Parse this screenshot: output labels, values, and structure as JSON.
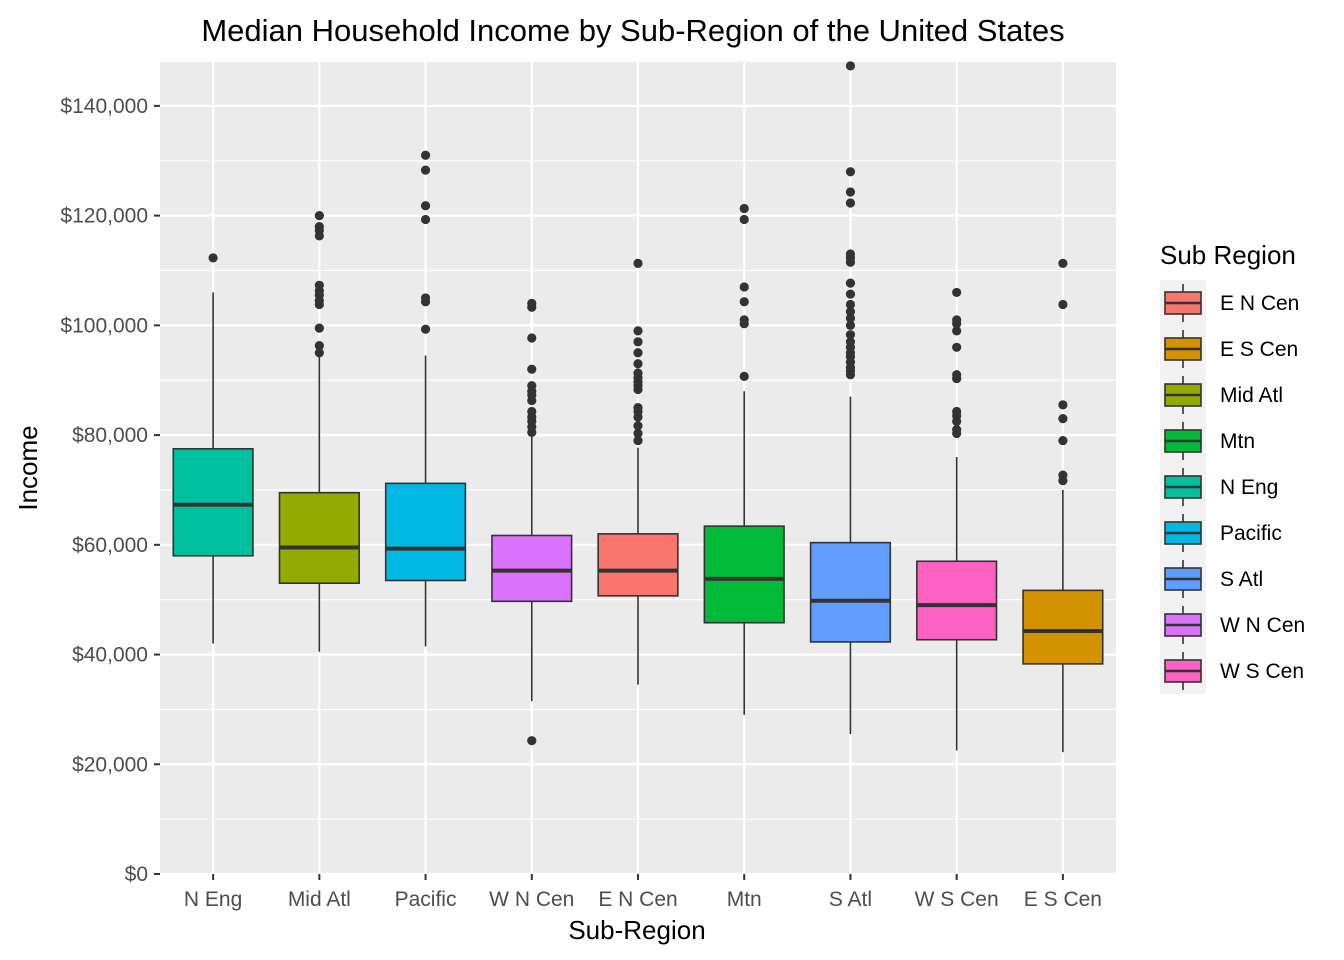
{
  "chart_data": {
    "type": "boxplot",
    "title": "Median Household Income by Sub-Region of the United States",
    "xlabel": "Sub-Region",
    "ylabel": "Income",
    "ylim": [
      0,
      148000
    ],
    "y_ticks": [
      0,
      20000,
      40000,
      60000,
      80000,
      100000,
      120000,
      140000
    ],
    "y_tick_labels": [
      "$0",
      "$20,000",
      "$40,000",
      "$60,000",
      "$80,000",
      "$100,000",
      "$120,000",
      "$140,000"
    ],
    "grid": true,
    "panel_background": "#ebebeb",
    "grid_color": "#ffffff",
    "legend": {
      "title": "Sub Region",
      "placement": "right",
      "entries": [
        {
          "label": "E N Cen",
          "color": "#F8766D"
        },
        {
          "label": "E S Cen",
          "color": "#D39200"
        },
        {
          "label": "Mid Atl",
          "color": "#93AA00"
        },
        {
          "label": "Mtn",
          "color": "#00BA38"
        },
        {
          "label": "N Eng",
          "color": "#00C19F"
        },
        {
          "label": "Pacific",
          "color": "#00B9E3"
        },
        {
          "label": "S Atl",
          "color": "#619CFF"
        },
        {
          "label": "W N Cen",
          "color": "#DB72FB"
        },
        {
          "label": "W S Cen",
          "color": "#FF61C3"
        }
      ]
    },
    "categories": [
      "N Eng",
      "Mid Atl",
      "Pacific",
      "W N Cen",
      "E N Cen",
      "Mtn",
      "S Atl",
      "W S Cen",
      "E S Cen"
    ],
    "boxes": [
      {
        "category": "N Eng",
        "color": "#00C19F",
        "whisker_low": 42000,
        "q1": 58000,
        "median": 67300,
        "q3": 77500,
        "whisker_high": 106000,
        "outliers": [
          112300
        ]
      },
      {
        "category": "Mid Atl",
        "color": "#93AA00",
        "whisker_low": 40500,
        "q1": 53000,
        "median": 59500,
        "q3": 69500,
        "whisker_high": 94500,
        "outliers": [
          95000,
          96300,
          99500,
          103800,
          104500,
          105500,
          106300,
          107300,
          116300,
          117300,
          118000,
          120000
        ]
      },
      {
        "category": "Pacific",
        "color": "#00B9E3",
        "whisker_low": 41500,
        "q1": 53500,
        "median": 59300,
        "q3": 71200,
        "whisker_high": 94500,
        "outliers": [
          99300,
          104300,
          105000,
          119300,
          121800,
          128300,
          131000
        ]
      },
      {
        "category": "W N Cen",
        "color": "#DB72FB",
        "whisker_low": 31500,
        "q1": 49700,
        "median": 55300,
        "q3": 61700,
        "whisker_high": 80000,
        "outliers": [
          24300,
          80500,
          81500,
          82500,
          83300,
          84300,
          86300,
          87300,
          88000,
          89000,
          92000,
          97700,
          103300,
          104000
        ]
      },
      {
        "category": "E N Cen",
        "color": "#F8766D",
        "whisker_low": 34500,
        "q1": 50700,
        "median": 55300,
        "q3": 62000,
        "whisker_high": 77700,
        "outliers": [
          79000,
          80300,
          81700,
          83300,
          84300,
          85000,
          88300,
          89000,
          89700,
          90500,
          91300,
          93000,
          95000,
          97000,
          99000,
          111300
        ]
      },
      {
        "category": "Mtn",
        "color": "#00BA38",
        "whisker_low": 29000,
        "q1": 45800,
        "median": 53800,
        "q3": 63400,
        "whisker_high": 88000,
        "outliers": [
          90700,
          100300,
          101000,
          104300,
          107000,
          119300,
          121300
        ]
      },
      {
        "category": "S Atl",
        "color": "#619CFF",
        "whisker_low": 25500,
        "q1": 42300,
        "median": 49800,
        "q3": 60400,
        "whisker_high": 87000,
        "outliers": [
          91000,
          91700,
          92300,
          93300,
          94300,
          95000,
          96000,
          97000,
          98300,
          100000,
          101300,
          102500,
          103800,
          105700,
          107700,
          111500,
          112300,
          113000,
          122300,
          124300,
          128000,
          147300
        ]
      },
      {
        "category": "W S Cen",
        "color": "#FF61C3",
        "whisker_low": 22500,
        "q1": 42700,
        "median": 49000,
        "q3": 57000,
        "whisker_high": 76000,
        "outliers": [
          80300,
          81000,
          82500,
          83500,
          84300,
          90300,
          91000,
          96000,
          99000,
          100300,
          101000,
          106000
        ]
      },
      {
        "category": "E S Cen",
        "color": "#D39200",
        "whisker_low": 22200,
        "q1": 38300,
        "median": 44300,
        "q3": 51700,
        "whisker_high": 70000,
        "outliers": [
          71700,
          72700,
          79000,
          83000,
          85500,
          103800,
          111300
        ]
      }
    ]
  }
}
